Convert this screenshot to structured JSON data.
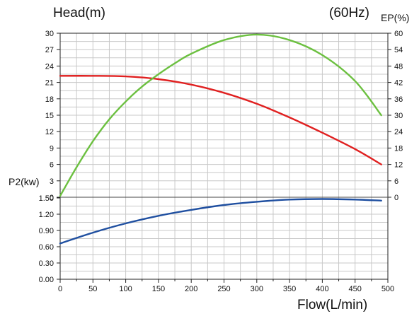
{
  "chart_data": {
    "type": "line",
    "title": "(60Hz)",
    "xlabel": "Flow(L/min)",
    "ylabels": {
      "head": "Head(m)",
      "power": "P2(kw)",
      "efficiency": "EP(%)"
    },
    "x_ticks": [
      "0",
      "50",
      "100",
      "150",
      "200",
      "250",
      "300",
      "350",
      "400",
      "450",
      "500"
    ],
    "xlim": [
      0,
      500
    ],
    "head_ticks": [
      "30",
      "27",
      "24",
      "21",
      "18",
      "15",
      "12",
      "9",
      "6",
      "3"
    ],
    "head_range": [
      0,
      30
    ],
    "power_ticks": [
      "1.50",
      "1.20",
      "0.90",
      "0.60",
      "0.30",
      "0.00"
    ],
    "power_range": [
      0,
      1.5
    ],
    "power_top_tick": "0",
    "power_axis_top": "1.80",
    "eff_ticks": [
      "60",
      "54",
      "48",
      "42",
      "36",
      "30",
      "24",
      "18",
      "12",
      "6",
      "0"
    ],
    "eff_range": [
      0,
      60
    ],
    "grid": true,
    "series": [
      {
        "id": "head",
        "color": "#e02020",
        "x": [
          0,
          50,
          100,
          150,
          200,
          250,
          300,
          350,
          400,
          450,
          490
        ],
        "y": [
          22.2,
          22.2,
          22.1,
          21.6,
          20.6,
          19.1,
          17.1,
          14.6,
          11.8,
          8.8,
          6.0
        ]
      },
      {
        "id": "efficiency",
        "color": "#6cc040",
        "x": [
          0,
          25,
          50,
          75,
          100,
          125,
          150,
          175,
          200,
          250,
          300,
          350,
          400,
          450,
          490
        ],
        "y": [
          0.5,
          11,
          20.5,
          28.5,
          35,
          40.5,
          45,
          49,
          52.5,
          57.5,
          59.5,
          57.5,
          52,
          42.5,
          30
        ]
      },
      {
        "id": "power",
        "color": "#1f4fa0",
        "x": [
          0,
          50,
          100,
          150,
          200,
          250,
          300,
          350,
          400,
          450,
          490
        ],
        "y": [
          0.66,
          0.86,
          1.03,
          1.17,
          1.28,
          1.37,
          1.43,
          1.47,
          1.48,
          1.47,
          1.45
        ]
      }
    ]
  }
}
